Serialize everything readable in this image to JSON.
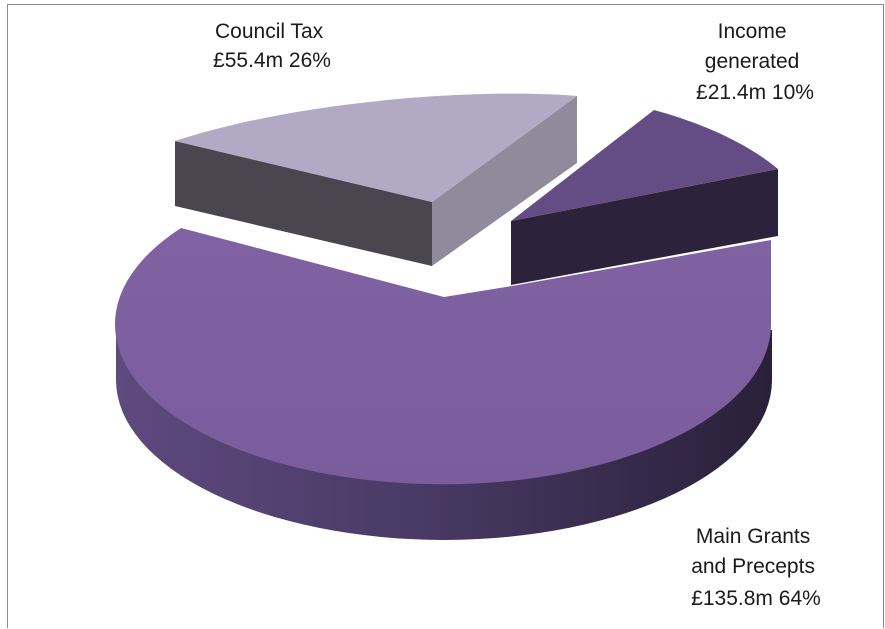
{
  "chart_data": {
    "type": "pie",
    "style": "3d-exploded",
    "currency_unit": "£m",
    "slices": [
      {
        "key": "main_grants",
        "value": 135.8,
        "percent": 64,
        "label_lines": [
          "Main Grants",
          "and Precepts",
          "£135.8m 64%"
        ],
        "colors": {
          "top": "#7e61a1",
          "side_light": "#715592",
          "side_dark": "#2d2340"
        },
        "exploded": false
      },
      {
        "key": "council_tax",
        "value": 55.4,
        "percent": 26,
        "label_lines": [
          "Council  Tax",
          "£55.4m 26%"
        ],
        "colors": {
          "top": "#b2a9c4",
          "side_light": "#8f8a9c",
          "side_dark": "#4a4650"
        },
        "exploded": true
      },
      {
        "key": "income_generated",
        "value": 21.4,
        "percent": 10,
        "label_lines": [
          "Income",
          "generated",
          "£21.4m 10%"
        ],
        "colors": {
          "top": "#644d84",
          "side_light": "#3d2f52",
          "side_dark": "#2a2039"
        },
        "exploded": true
      }
    ],
    "legend": "none",
    "grid": false
  }
}
